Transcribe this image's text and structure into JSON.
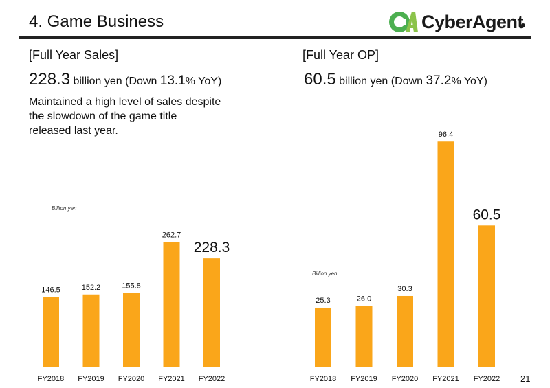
{
  "page": {
    "title": "4. Game Business",
    "page_number": "21",
    "logo_text": "CyberAgent",
    "logo_mark_text": "CA"
  },
  "colors": {
    "bar": "#FAA61A",
    "text": "#111111",
    "rule": "#222222",
    "logo_green": "#4CAF50"
  },
  "sales": {
    "header": "[Full Year Sales]",
    "value": "228.3",
    "unit_prefix": " billion yen (Down ",
    "change": "13.1",
    "unit_suffix": "% YoY)",
    "description": "Maintained a high level of sales despite the slowdown of the game title released last year."
  },
  "op": {
    "header": "[Full Year OP]",
    "value": "60.5",
    "unit_prefix": " billion yen (Down ",
    "change": "37.2",
    "unit_suffix": "% YoY)"
  },
  "chart_data": [
    {
      "type": "bar",
      "unit_label": "Billion yen",
      "categories": [
        "FY2018",
        "FY2019",
        "FY2020",
        "FY2021",
        "FY2022"
      ],
      "values": [
        146.5,
        152.2,
        155.8,
        262.7,
        228.3
      ],
      "labels": [
        "146.5",
        "152.2",
        "155.8",
        "262.7",
        "228.3"
      ],
      "highlight_index": 4,
      "ylim": [
        0,
        300
      ]
    },
    {
      "type": "bar",
      "unit_label": "Billion yen",
      "categories": [
        "FY2018",
        "FY2019",
        "FY2020",
        "FY2021",
        "FY2022"
      ],
      "values": [
        25.3,
        26.0,
        30.3,
        96.4,
        60.5
      ],
      "labels": [
        "25.3",
        "26.0",
        "30.3",
        "96.4",
        "60.5"
      ],
      "highlight_index": 4,
      "ylim": [
        0,
        100
      ]
    }
  ]
}
